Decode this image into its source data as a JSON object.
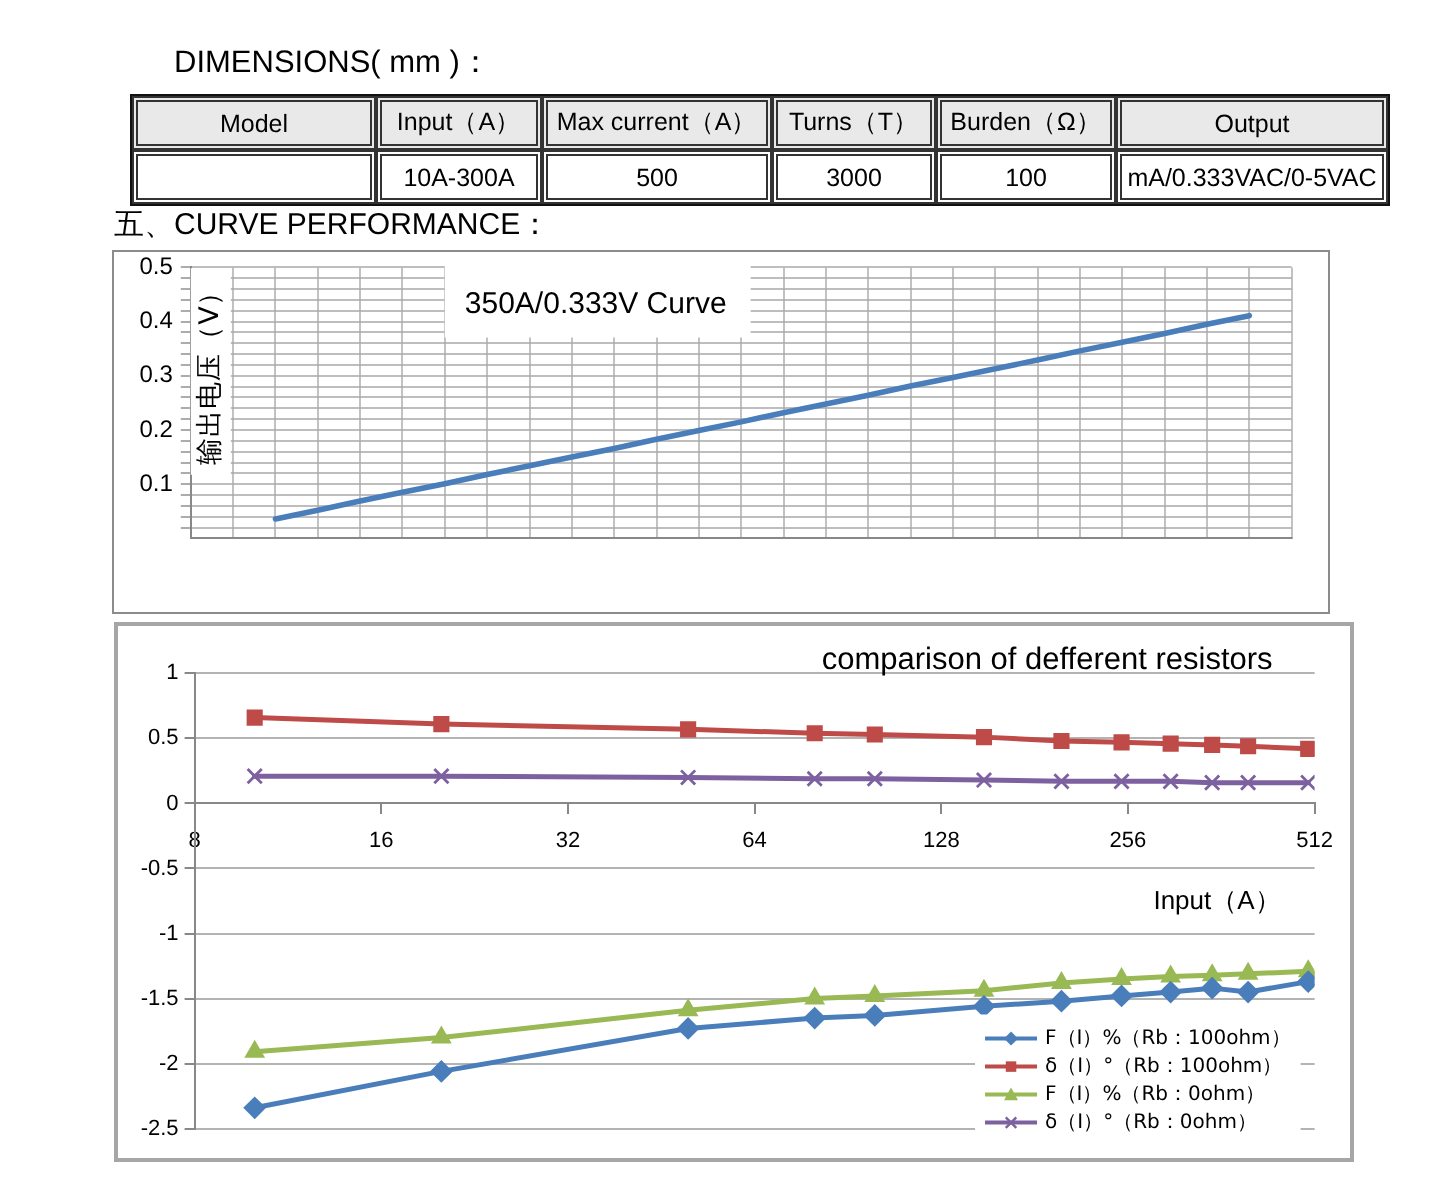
{
  "chart_data": [
    {
      "type": "other",
      "title": "DIMENSIONS( mm )：",
      "categories": [
        "Model",
        "Input（A）",
        "Max current（A）",
        "Turns（T）",
        "Burden（Ω）",
        "Output"
      ],
      "cell_labels": [
        [
          null,
          "10A-300A",
          "500",
          "3000",
          "100",
          "mA/0.333VAC/0-5VAC"
        ]
      ]
    },
    {
      "type": "line",
      "title": "五、CURVE PERFORMANCE：",
      "subtitle": "350A/0.333V Curve",
      "ylabel": "输出电压（V）",
      "categories": [
        null,
        null,
        null,
        null,
        null,
        null,
        null,
        null,
        null,
        null,
        null,
        null,
        null,
        null,
        null,
        null,
        null,
        null,
        null,
        null,
        null,
        null,
        null,
        null,
        null,
        null,
        null
      ],
      "series": [
        {
          "color": "#4a7ebb",
          "values": [
            null,
            null,
            0.036,
            0.052,
            0.069,
            0.085,
            0.101,
            0.118,
            0.134,
            0.15,
            0.166,
            0.183,
            0.199,
            0.215,
            0.232,
            0.248,
            0.264,
            0.281,
            0.297,
            0.313,
            0.329,
            0.346,
            0.362,
            0.378,
            0.395,
            0.411,
            null
          ]
        }
      ],
      "ylim": [
        0,
        0.5
      ],
      "yticks": [
        {
          "value": 0.02,
          "label": null
        },
        {
          "value": 0.04,
          "label": null
        },
        {
          "value": 0.06,
          "label": null
        },
        {
          "value": 0.08,
          "label": null
        },
        0.1,
        {
          "value": 0.12,
          "label": null
        },
        {
          "value": 0.14,
          "label": null
        },
        {
          "value": 0.16,
          "label": null
        },
        {
          "value": 0.18,
          "label": null
        },
        0.2,
        {
          "value": 0.22,
          "label": null
        },
        {
          "value": 0.24,
          "label": null
        },
        {
          "value": 0.26,
          "label": null
        },
        {
          "value": 0.28,
          "label": null
        },
        0.3,
        {
          "value": 0.32,
          "label": null
        },
        {
          "value": 0.34,
          "label": null
        },
        {
          "value": 0.36,
          "label": null
        },
        {
          "value": 0.38,
          "label": null
        },
        0.4,
        {
          "value": 0.42,
          "label": null
        },
        {
          "value": 0.44,
          "label": null
        },
        {
          "value": 0.46,
          "label": null
        },
        {
          "value": 0.48,
          "label": null
        },
        0.5
      ],
      "grid": true,
      "marker": "none",
      "tick_labels": "y"
    },
    {
      "type": "line",
      "title": "comparison of defferent resistors",
      "xlabel": "Input（A）",
      "x": [
        10,
        20,
        50,
        80,
        100,
        150,
        200,
        250,
        300,
        350,
        400,
        500
      ],
      "series": [
        {
          "name": "F（I）%（Rb：100ohm）",
          "color": "#4a7ebb",
          "marker": "diamond",
          "values": [
            -2.34,
            -2.06,
            -1.73,
            -1.65,
            -1.63,
            -1.56,
            -1.52,
            -1.48,
            -1.45,
            -1.42,
            -1.45,
            -1.37
          ]
        },
        {
          "name": "δ（I）°（Rb：100ohm）",
          "color": "#be4b48",
          "marker": "square",
          "values": [
            0.66,
            0.61,
            0.57,
            0.54,
            0.53,
            0.51,
            0.48,
            0.47,
            0.46,
            0.45,
            0.44,
            0.42
          ]
        },
        {
          "name": "F（I）%（Rb：0ohm）",
          "color": "#98b954",
          "marker": "triangle",
          "values": [
            -1.91,
            -1.8,
            -1.59,
            -1.5,
            -1.48,
            -1.44,
            -1.38,
            -1.35,
            -1.33,
            -1.32,
            -1.31,
            -1.29
          ]
        },
        {
          "name": "δ（I）°（Rb：0ohm）",
          "color": "#7d60a0",
          "marker": "cross",
          "values": [
            0.21,
            0.21,
            0.2,
            0.19,
            0.19,
            0.18,
            0.17,
            0.17,
            0.17,
            0.16,
            0.16,
            0.16
          ]
        }
      ],
      "xlim": [
        8,
        512
      ],
      "xticks": [
        8,
        16,
        32,
        64,
        128,
        256,
        512
      ],
      "ylim": [
        -2.5,
        1
      ],
      "yticks": [
        1,
        0.5,
        0,
        -0.5,
        -1,
        -1.5,
        -2,
        -2.5
      ],
      "log": "x",
      "grid": "y",
      "legend": "bottom right"
    }
  ]
}
